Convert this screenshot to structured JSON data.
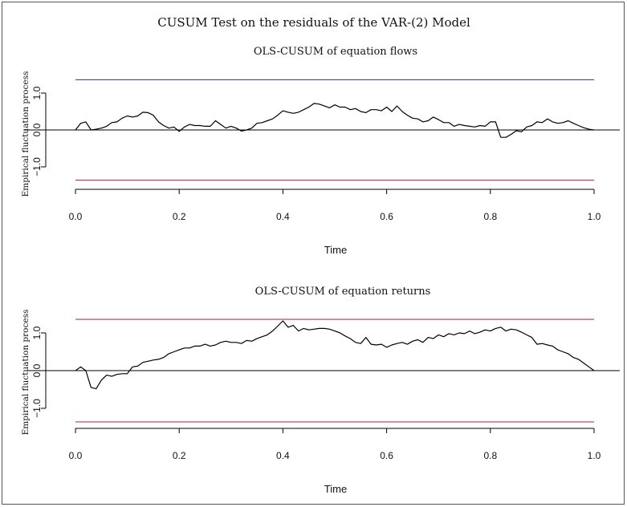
{
  "figure_title": "CUSUM Test on the residuals of the VAR-(2) Model",
  "chart_data": [
    {
      "type": "line",
      "title": "OLS-CUSUM of equation flows",
      "xlabel": "Time",
      "ylabel": "Empirical fluctuation process",
      "xlim": [
        0.0,
        1.0
      ],
      "ylim": [
        -1.5,
        1.5
      ],
      "x_ticks": [
        "0.0",
        "0.2",
        "0.4",
        "0.6",
        "0.8",
        "1.0"
      ],
      "y_ticks": [
        "−1.0",
        "0.0",
        "1.0"
      ],
      "boundary": {
        "upper": 1.36,
        "lower": -1.36,
        "upper_color": "#4a3fcf",
        "lower_color": "#c0305a"
      },
      "zero_line": 0.0,
      "series": [
        {
          "line_color": "#000000",
          "x": [
            0.0,
            0.01,
            0.02,
            0.03,
            0.04,
            0.05,
            0.06,
            0.07,
            0.08,
            0.09,
            0.1,
            0.11,
            0.12,
            0.13,
            0.14,
            0.15,
            0.16,
            0.17,
            0.18,
            0.19,
            0.2,
            0.21,
            0.22,
            0.23,
            0.24,
            0.25,
            0.26,
            0.27,
            0.28,
            0.29,
            0.3,
            0.31,
            0.32,
            0.33,
            0.34,
            0.35,
            0.36,
            0.37,
            0.38,
            0.39,
            0.4,
            0.41,
            0.42,
            0.43,
            0.44,
            0.45,
            0.46,
            0.47,
            0.48,
            0.49,
            0.5,
            0.51,
            0.52,
            0.53,
            0.54,
            0.55,
            0.56,
            0.57,
            0.58,
            0.59,
            0.6,
            0.61,
            0.62,
            0.63,
            0.64,
            0.65,
            0.66,
            0.67,
            0.68,
            0.69,
            0.7,
            0.71,
            0.72,
            0.73,
            0.74,
            0.75,
            0.76,
            0.77,
            0.78,
            0.79,
            0.8,
            0.81,
            0.82,
            0.83,
            0.84,
            0.85,
            0.86,
            0.87,
            0.88,
            0.89,
            0.9,
            0.91,
            0.92,
            0.93,
            0.94,
            0.95,
            0.96,
            0.97,
            0.98,
            0.99,
            1.0
          ],
          "y": [
            0.0,
            0.18,
            0.22,
            0.0,
            0.02,
            0.05,
            0.1,
            0.2,
            0.22,
            0.32,
            0.38,
            0.35,
            0.38,
            0.48,
            0.47,
            0.4,
            0.22,
            0.12,
            0.05,
            0.08,
            -0.04,
            0.08,
            0.15,
            0.12,
            0.12,
            0.1,
            0.1,
            0.25,
            0.15,
            0.05,
            0.1,
            0.05,
            -0.03,
            0.0,
            0.05,
            0.18,
            0.2,
            0.25,
            0.3,
            0.4,
            0.52,
            0.48,
            0.45,
            0.48,
            0.55,
            0.62,
            0.72,
            0.7,
            0.65,
            0.6,
            0.68,
            0.62,
            0.62,
            0.55,
            0.58,
            0.5,
            0.47,
            0.55,
            0.55,
            0.52,
            0.62,
            0.5,
            0.65,
            0.5,
            0.4,
            0.32,
            0.3,
            0.22,
            0.25,
            0.35,
            0.28,
            0.2,
            0.2,
            0.1,
            0.15,
            0.12,
            0.1,
            0.08,
            0.12,
            0.1,
            0.22,
            0.22,
            -0.2,
            -0.2,
            -0.12,
            -0.02,
            -0.05,
            0.08,
            0.12,
            0.22,
            0.2,
            0.3,
            0.22,
            0.18,
            0.2,
            0.25,
            0.18,
            0.12,
            0.06,
            0.02,
            0.0
          ]
        }
      ]
    },
    {
      "type": "line",
      "title": "OLS-CUSUM of equation returns",
      "xlabel": "Time",
      "ylabel": "Empirical fluctuation process",
      "xlim": [
        0.0,
        1.0
      ],
      "ylim": [
        -1.5,
        1.5
      ],
      "x_ticks": [
        "0.0",
        "0.2",
        "0.4",
        "0.6",
        "0.8",
        "1.0"
      ],
      "y_ticks": [
        "−1.0",
        "0.0",
        "1.0"
      ],
      "boundary": {
        "upper": 1.36,
        "lower": -1.36,
        "upper_color": "#c0305a",
        "lower_color": "#c0305a"
      },
      "zero_line": 0.0,
      "series": [
        {
          "line_color": "#000000",
          "x": [
            0.0,
            0.01,
            0.02,
            0.03,
            0.04,
            0.05,
            0.06,
            0.07,
            0.08,
            0.09,
            0.1,
            0.11,
            0.12,
            0.13,
            0.14,
            0.15,
            0.16,
            0.17,
            0.18,
            0.19,
            0.2,
            0.21,
            0.22,
            0.23,
            0.24,
            0.25,
            0.26,
            0.27,
            0.28,
            0.29,
            0.3,
            0.31,
            0.32,
            0.33,
            0.34,
            0.35,
            0.36,
            0.37,
            0.38,
            0.39,
            0.4,
            0.41,
            0.42,
            0.43,
            0.44,
            0.45,
            0.46,
            0.47,
            0.48,
            0.49,
            0.5,
            0.51,
            0.52,
            0.53,
            0.54,
            0.55,
            0.56,
            0.57,
            0.58,
            0.59,
            0.6,
            0.61,
            0.62,
            0.63,
            0.64,
            0.65,
            0.66,
            0.67,
            0.68,
            0.69,
            0.7,
            0.71,
            0.72,
            0.73,
            0.74,
            0.75,
            0.76,
            0.77,
            0.78,
            0.79,
            0.8,
            0.81,
            0.82,
            0.83,
            0.84,
            0.85,
            0.86,
            0.87,
            0.88,
            0.89,
            0.9,
            0.91,
            0.92,
            0.93,
            0.94,
            0.95,
            0.96,
            0.97,
            0.98,
            0.99,
            1.0
          ],
          "y": [
            0.0,
            0.1,
            0.0,
            -0.45,
            -0.48,
            -0.25,
            -0.12,
            -0.15,
            -0.1,
            -0.08,
            -0.08,
            0.1,
            0.12,
            0.22,
            0.25,
            0.28,
            0.3,
            0.35,
            0.45,
            0.5,
            0.55,
            0.6,
            0.6,
            0.65,
            0.65,
            0.7,
            0.65,
            0.68,
            0.75,
            0.78,
            0.75,
            0.75,
            0.72,
            0.8,
            0.78,
            0.85,
            0.9,
            0.95,
            1.05,
            1.18,
            1.32,
            1.15,
            1.2,
            1.05,
            1.12,
            1.08,
            1.1,
            1.12,
            1.12,
            1.1,
            1.05,
            1.0,
            0.92,
            0.85,
            0.75,
            0.72,
            0.88,
            0.7,
            0.68,
            0.7,
            0.62,
            0.68,
            0.72,
            0.75,
            0.7,
            0.78,
            0.82,
            0.75,
            0.88,
            0.85,
            0.95,
            0.9,
            0.98,
            0.95,
            1.0,
            0.98,
            1.05,
            0.98,
            1.02,
            1.08,
            1.05,
            1.12,
            1.15,
            1.05,
            1.1,
            1.08,
            1.02,
            0.95,
            0.88,
            0.7,
            0.72,
            0.68,
            0.65,
            0.55,
            0.5,
            0.45,
            0.35,
            0.3,
            0.2,
            0.1,
            0.0
          ]
        }
      ]
    }
  ]
}
